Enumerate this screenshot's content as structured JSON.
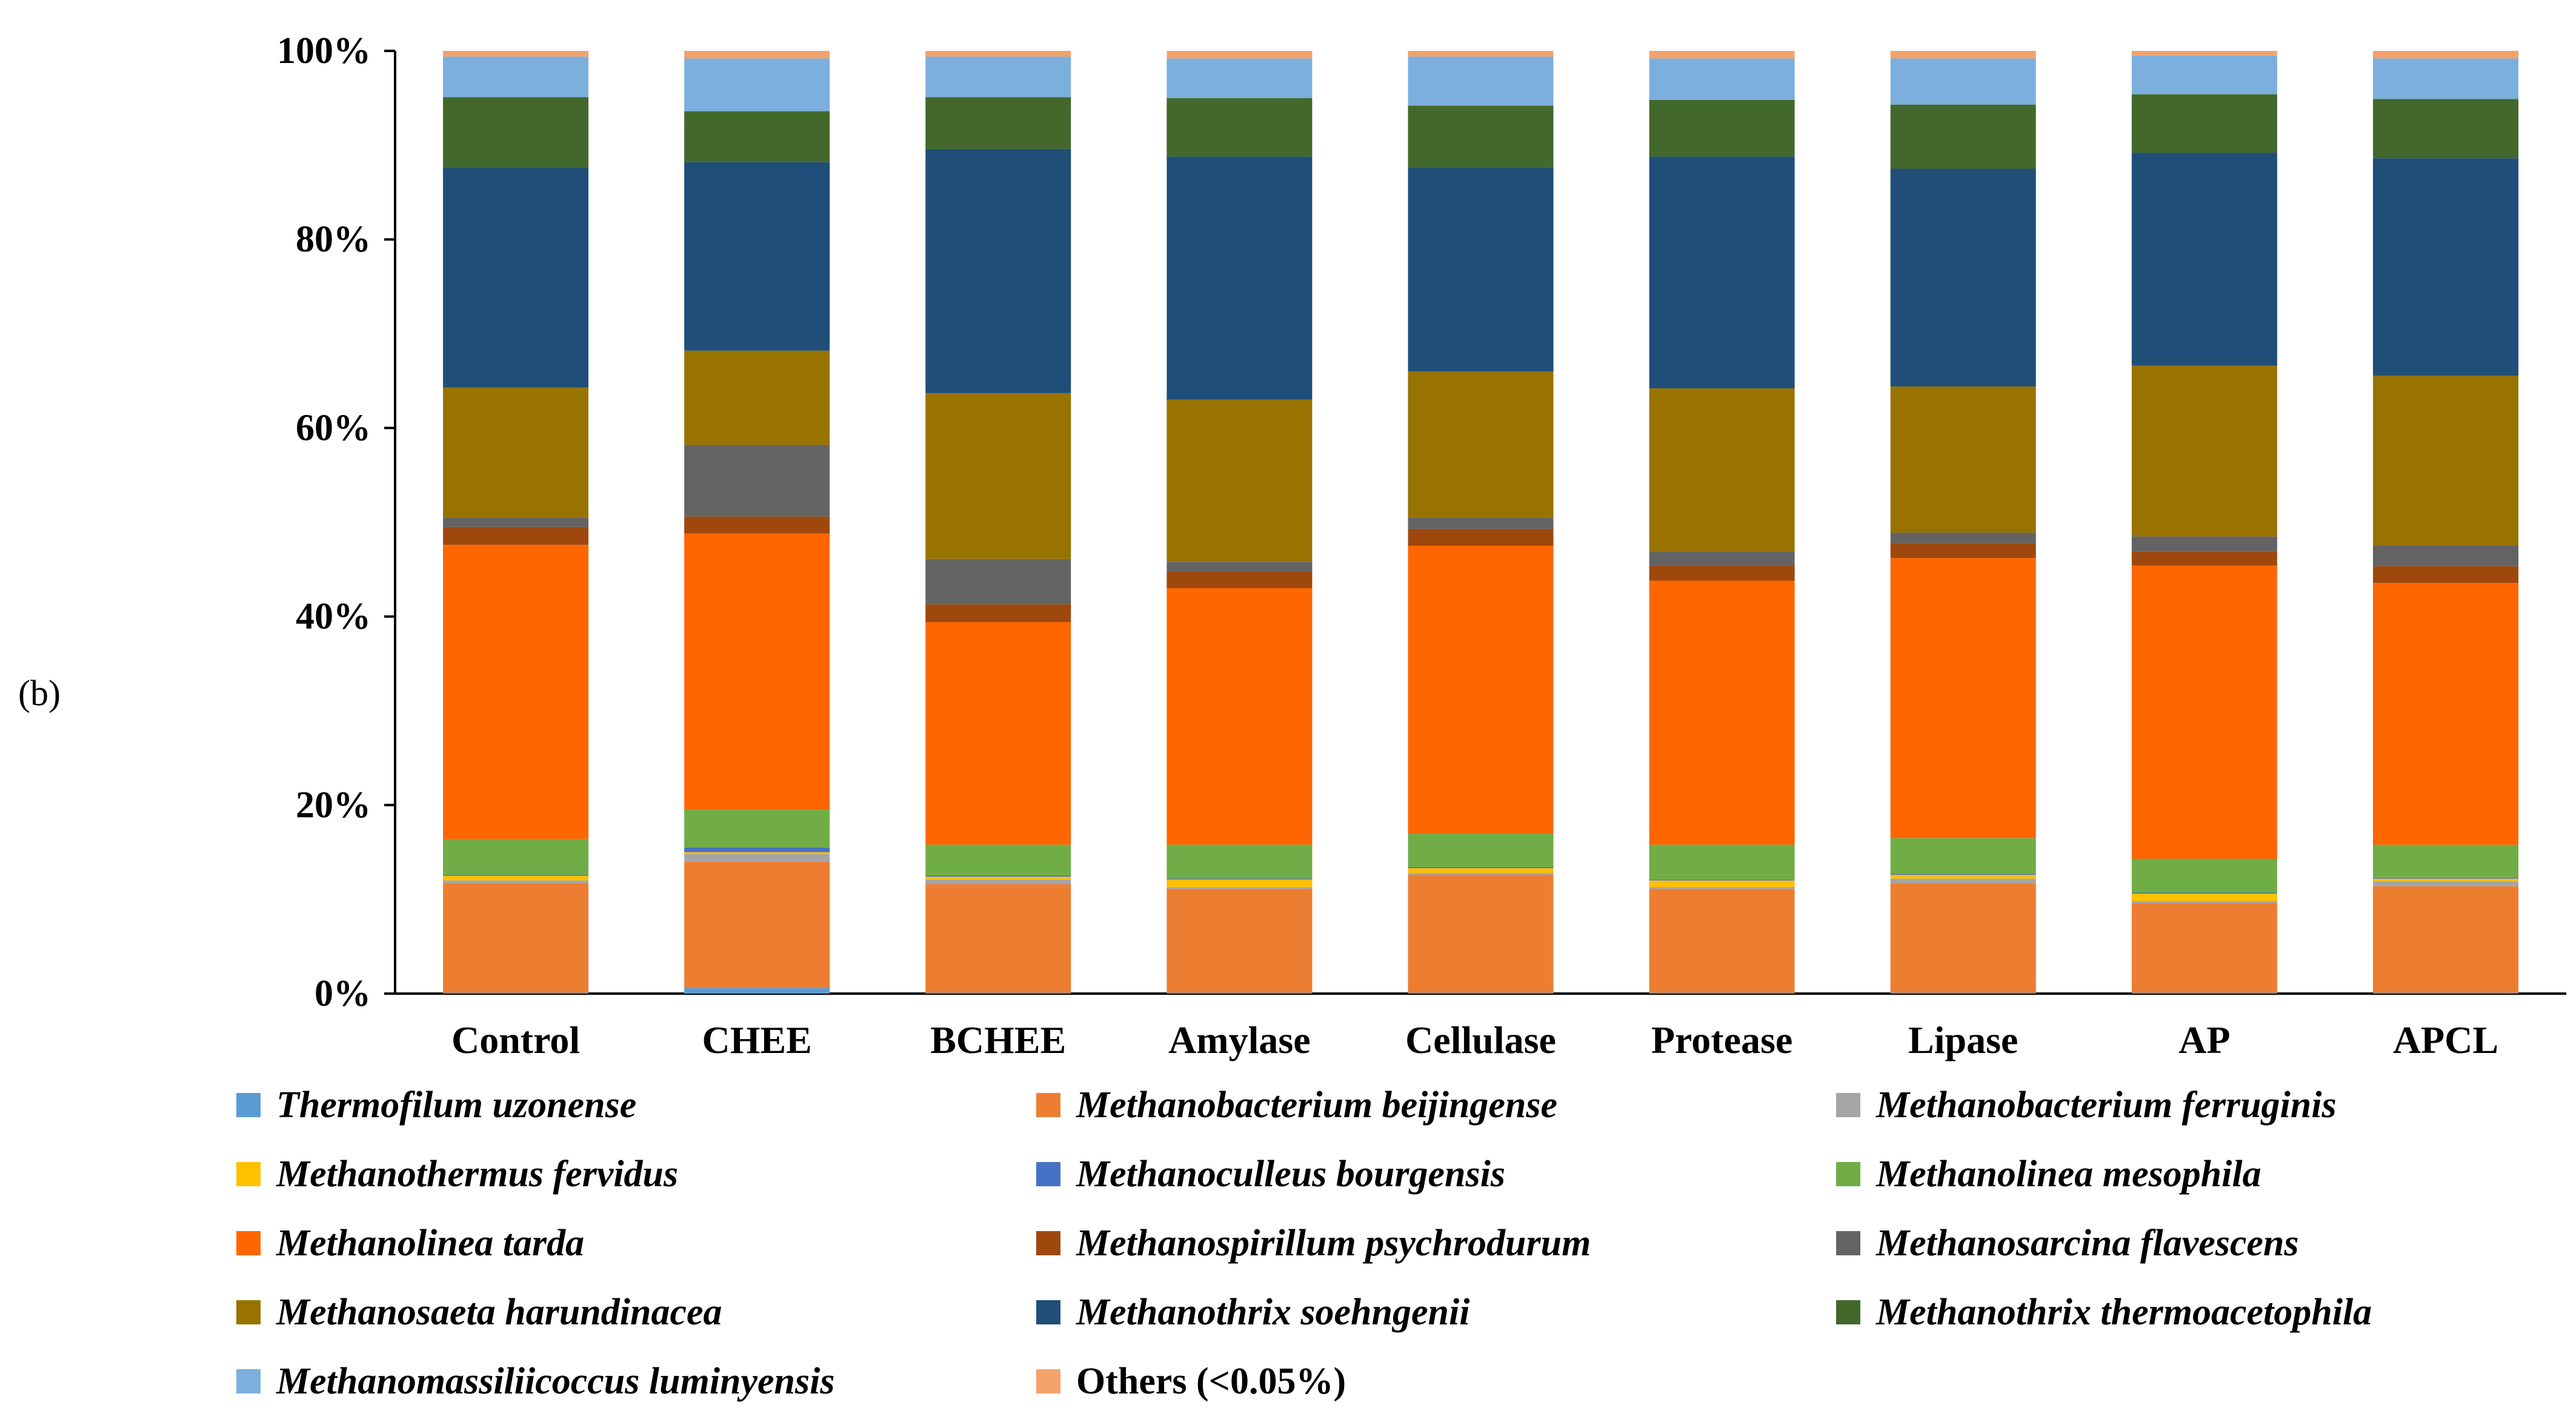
{
  "panel_label": "(b)",
  "chart_data": {
    "type": "stacked-bar-100",
    "title": "",
    "xlabel": "",
    "ylabel": "",
    "ylim": [
      0,
      100
    ],
    "y_ticks": [
      "0%",
      "20%",
      "40%",
      "60%",
      "80%",
      "100%"
    ],
    "categories": [
      "Control",
      "CHEE",
      "BCHEE",
      "Amylase",
      "Cellulase",
      "Protease",
      "Lipase",
      "AP",
      "APCL"
    ],
    "series": [
      {
        "name": "Thermofilum uzonense",
        "color": "#5b9bd5",
        "italic": true,
        "values": [
          0.1,
          0.6,
          0.1,
          0.1,
          0.1,
          0.1,
          0.1,
          0.1,
          0.1
        ]
      },
      {
        "name": "Methanobacterium beijingense",
        "color": "#ed7d31",
        "italic": true,
        "values": [
          11.6,
          13.4,
          11.5,
          11.0,
          12.5,
          11.0,
          11.6,
          9.5,
          11.3
        ]
      },
      {
        "name": "Methanobacterium ferruginis",
        "color": "#a5a5a5",
        "italic": true,
        "values": [
          0.3,
          0.8,
          0.5,
          0.2,
          0.2,
          0.2,
          0.5,
          0.2,
          0.5
        ]
      },
      {
        "name": "Methanothermus fervidus",
        "color": "#ffc000",
        "italic": true,
        "values": [
          0.5,
          0.2,
          0.3,
          0.8,
          0.5,
          0.7,
          0.4,
          0.8,
          0.3
        ]
      },
      {
        "name": "Methanoculleus bourgensis",
        "color": "#4472c4",
        "italic": true,
        "values": [
          0.1,
          0.5,
          0.1,
          0.1,
          0.1,
          0.1,
          0.1,
          0.1,
          0.1
        ]
      },
      {
        "name": "Methanolinea mesophila",
        "color": "#70ad47",
        "italic": true,
        "values": [
          3.8,
          4.0,
          3.3,
          3.6,
          3.6,
          3.7,
          3.8,
          3.6,
          3.5
        ]
      },
      {
        "name": "Methanolinea tarda",
        "color": "#ff6600",
        "italic": true,
        "values": [
          31.2,
          29.3,
          23.6,
          27.2,
          30.5,
          28.0,
          29.7,
          31.1,
          27.8
        ]
      },
      {
        "name": "Methanospirillum psychrodurum",
        "color": "#9e480e",
        "italic": true,
        "values": [
          1.9,
          1.8,
          1.9,
          1.8,
          1.8,
          1.6,
          1.6,
          1.5,
          1.8
        ]
      },
      {
        "name": "Methanosarcina flavescens",
        "color": "#636363",
        "italic": true,
        "values": [
          1.0,
          7.6,
          4.8,
          1.0,
          1.2,
          1.5,
          1.1,
          1.6,
          2.2
        ]
      },
      {
        "name": "Methanosaeta harundinacea",
        "color": "#997300",
        "italic": true,
        "values": [
          13.8,
          10.0,
          17.6,
          17.2,
          15.5,
          17.3,
          15.5,
          18.1,
          18.0
        ]
      },
      {
        "name": "Methanothrix soehngenii",
        "color": "#1f4e79",
        "italic": true,
        "values": [
          23.3,
          20.0,
          25.9,
          25.8,
          21.6,
          24.6,
          23.1,
          22.6,
          23.1
        ]
      },
      {
        "name": "Methanothrix thermoacetophila",
        "color": "#43682b",
        "italic": true,
        "values": [
          7.5,
          5.4,
          5.5,
          6.2,
          6.6,
          6.0,
          6.8,
          6.2,
          6.3
        ]
      },
      {
        "name": "Methanomassiliicoccus luminyensis",
        "color": "#7cafdd",
        "italic": true,
        "values": [
          4.3,
          5.6,
          4.3,
          4.2,
          5.2,
          4.4,
          4.9,
          4.1,
          4.3
        ]
      },
      {
        "name": "Others (<0.05%)",
        "color": "#f4a26b",
        "italic": false,
        "values": [
          0.6,
          0.8,
          0.6,
          0.8,
          0.6,
          0.8,
          0.8,
          0.5,
          0.8
        ]
      }
    ],
    "grid": false,
    "legend_position": "bottom"
  }
}
